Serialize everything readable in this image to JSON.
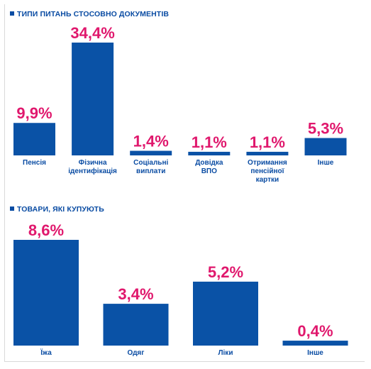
{
  "chart_data": [
    {
      "type": "bar",
      "title": "ТИПИ ПИТАНЬ СТОСОВНО ДОКУМЕНТІВ",
      "categories": [
        "Пенсія",
        "Фізична ідентифікація",
        "Соціальні виплати",
        "Довідка ВПО",
        "Отримання пенсійної картки",
        "Інше"
      ],
      "category_lines": [
        [
          "Пенсія"
        ],
        [
          "Фізична",
          "ідентифікація"
        ],
        [
          "Соціальні",
          "виплати"
        ],
        [
          "Довідка",
          "ВПО"
        ],
        [
          "Отримання",
          "пенсійної",
          "картки"
        ],
        [
          "Інше"
        ]
      ],
      "values": [
        9.9,
        34.4,
        1.4,
        1.1,
        1.1,
        5.3
      ],
      "value_labels": [
        "9,9%",
        "34,4%",
        "1,4%",
        "1,1%",
        "1,1%",
        "5,3%"
      ],
      "bar_color": "#0a52a6",
      "label_color": "#e0186d",
      "grid": false,
      "legend": "none"
    },
    {
      "type": "bar",
      "title": "ТОВАРИ, ЯКІ КУПУЮТЬ",
      "categories": [
        "Їжа",
        "Одяг",
        "Ліки",
        "Інше"
      ],
      "category_lines": [
        [
          "Їжа"
        ],
        [
          "Одяг"
        ],
        [
          "Ліки"
        ],
        [
          "Інше"
        ]
      ],
      "values": [
        8.6,
        3.4,
        5.2,
        0.4
      ],
      "value_labels": [
        "8,6%",
        "3,4%",
        "5,2%",
        "0,4%"
      ],
      "bar_color": "#0a52a6",
      "label_color": "#e0186d",
      "grid": false,
      "legend": "none"
    }
  ]
}
